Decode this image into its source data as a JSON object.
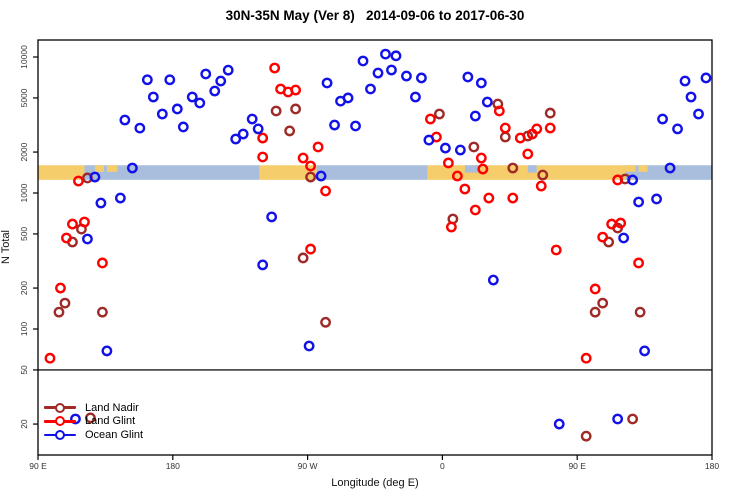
{
  "title": "30N-35N May (Ver 8)   2014-09-06 to 2017-06-30",
  "axes": {
    "x_label": "Longitude (deg E)",
    "y_label": "N Total"
  },
  "legend": {
    "items": [
      {
        "label": "Land Nadir",
        "color": "#9E2B28"
      },
      {
        "label": "Land Glint",
        "color": "#FF0000"
      },
      {
        "label": "Ocean Glint",
        "color": "#1212E8"
      }
    ]
  },
  "chart_data": {
    "type": "scatter",
    "title": "30N-35N May (Ver 8)   2014-09-06 to 2017-06-30",
    "xlabel": "Longitude (deg E)",
    "ylabel": "N Total",
    "x_axis": {
      "range": [
        90,
        540
      ],
      "ticks": [
        {
          "lon": 90,
          "label": "90 E"
        },
        {
          "lon": 180,
          "label": "180"
        },
        {
          "lon": 270,
          "label": "90 W"
        },
        {
          "lon": 360,
          "label": "0"
        },
        {
          "lon": 450,
          "label": "90 E"
        },
        {
          "lon": 540,
          "label": "180"
        }
      ]
    },
    "y_axis": {
      "scale": "log",
      "range": [
        12,
        13300
      ],
      "ticks": [
        10000,
        5000,
        2000,
        1000,
        500,
        200,
        100,
        50,
        20
      ]
    },
    "hline": 50,
    "map_band": {
      "value_range": [
        1250,
        1600
      ],
      "land_color": "#F6CD6B",
      "ocean_color": "#A9BEDD",
      "segments": [
        {
          "type": "land",
          "lon": [
            90,
            121
          ]
        },
        {
          "type": "ocean",
          "lon": [
            121,
            238
          ]
        },
        {
          "type": "land",
          "lon": [
            238,
            276
          ]
        },
        {
          "type": "ocean",
          "lon": [
            276,
            350
          ]
        },
        {
          "type": "land",
          "lon": [
            350,
            482
          ]
        },
        {
          "type": "ocean",
          "lon": [
            482,
            540
          ]
        }
      ],
      "islands": [
        {
          "lon": [
            128,
            134
          ]
        },
        {
          "lon": [
            136,
            143
          ]
        },
        {
          "lon": [
            482,
            489
          ]
        },
        {
          "lon": [
            491,
            497
          ]
        }
      ],
      "notches": [
        {
          "lon": [
            375,
            385
          ]
        },
        {
          "lon": [
            417,
            423
          ]
        }
      ]
    },
    "series": [
      {
        "name": "Land Nadir",
        "color": "#9E2B28",
        "points": [
          [
            123,
            1290
          ],
          [
            249,
            4010
          ],
          [
            262,
            4150
          ],
          [
            258,
            2860
          ],
          [
            358,
            3810
          ],
          [
            381,
            2180
          ],
          [
            397,
            4510
          ],
          [
            402,
            2580
          ],
          [
            417,
            2624
          ],
          [
            432,
            3870
          ],
          [
            407,
            1527
          ],
          [
            427,
            1355
          ],
          [
            482,
            1268
          ],
          [
            272,
            1310
          ],
          [
            119,
            543
          ],
          [
            113,
            436
          ],
          [
            108,
            155
          ],
          [
            104,
            133
          ],
          [
            133,
            133
          ],
          [
            267,
            333
          ],
          [
            282,
            112
          ],
          [
            367,
            644
          ],
          [
            477,
            553
          ],
          [
            471,
            436
          ],
          [
            467,
            155
          ],
          [
            462,
            133
          ],
          [
            492,
            133
          ],
          [
            456,
            16.3
          ],
          [
            487,
            21.8
          ],
          [
            125,
            22.2
          ]
        ]
      },
      {
        "name": "Land Glint",
        "color": "#FF0000",
        "points": [
          [
            117,
            1225
          ],
          [
            240,
            2535
          ],
          [
            240,
            1840
          ],
          [
            248,
            8300
          ],
          [
            252,
            5820
          ],
          [
            257,
            5530
          ],
          [
            262,
            5715
          ],
          [
            267,
            1807
          ],
          [
            272,
            1580
          ],
          [
            277,
            2180
          ],
          [
            356,
            2580
          ],
          [
            352,
            3500
          ],
          [
            364,
            1663
          ],
          [
            370,
            1333
          ],
          [
            386,
            1807
          ],
          [
            387,
            1500
          ],
          [
            398,
            4010
          ],
          [
            402,
            3005
          ],
          [
            412,
            2535
          ],
          [
            420,
            2715
          ],
          [
            423,
            2960
          ],
          [
            432,
            3005
          ],
          [
            417,
            1936
          ],
          [
            426,
            1125
          ],
          [
            477,
            1247
          ],
          [
            113,
            591
          ],
          [
            121,
            612
          ],
          [
            109,
            467
          ],
          [
            133,
            306
          ],
          [
            105,
            200
          ],
          [
            282,
            1035
          ],
          [
            272,
            387
          ],
          [
            375,
            1070
          ],
          [
            391,
            918
          ],
          [
            382,
            750
          ],
          [
            366,
            562
          ],
          [
            407,
            918
          ],
          [
            473,
            591
          ],
          [
            479,
            601
          ],
          [
            467,
            474
          ],
          [
            436,
            381
          ],
          [
            491,
            306
          ],
          [
            462,
            197
          ],
          [
            98,
            61
          ],
          [
            456,
            61
          ]
        ]
      },
      {
        "name": "Ocean Glint",
        "color": "#1212E8",
        "points": [
          [
            163,
            6800
          ],
          [
            178,
            6800
          ],
          [
            202,
            7500
          ],
          [
            217,
            8000
          ],
          [
            212,
            6660
          ],
          [
            208,
            5620
          ],
          [
            167,
            5080
          ],
          [
            193,
            5080
          ],
          [
            198,
            4590
          ],
          [
            173,
            3810
          ],
          [
            183,
            4150
          ],
          [
            148,
            3440
          ],
          [
            158,
            3000
          ],
          [
            187,
            3060
          ],
          [
            233,
            3500
          ],
          [
            237,
            2960
          ],
          [
            227,
            2715
          ],
          [
            222,
            2495
          ],
          [
            153,
            1527
          ],
          [
            128,
            1310
          ],
          [
            307,
            9350
          ],
          [
            322,
            10500
          ],
          [
            329,
            10200
          ],
          [
            317,
            7620
          ],
          [
            326,
            8020
          ],
          [
            336,
            7245
          ],
          [
            346,
            7015
          ],
          [
            312,
            5820
          ],
          [
            292,
            4740
          ],
          [
            297,
            5000
          ],
          [
            283,
            6440
          ],
          [
            288,
            3160
          ],
          [
            302,
            3110
          ],
          [
            342,
            5080
          ],
          [
            351,
            2450
          ],
          [
            362,
            2140
          ],
          [
            372,
            2070
          ],
          [
            377,
            7130
          ],
          [
            386,
            6440
          ],
          [
            390,
            4665
          ],
          [
            382,
            3680
          ],
          [
            279,
            1333
          ],
          [
            507,
            3500
          ],
          [
            517,
            2960
          ],
          [
            522,
            6660
          ],
          [
            536,
            7015
          ],
          [
            526,
            5080
          ],
          [
            531,
            3810
          ],
          [
            512,
            1527
          ],
          [
            487,
            1247
          ],
          [
            132,
            844
          ],
          [
            145,
            918
          ],
          [
            123,
            459
          ],
          [
            240,
            296
          ],
          [
            246,
            667
          ],
          [
            481,
            467
          ],
          [
            491,
            859
          ],
          [
            503,
            904
          ],
          [
            394,
            229
          ],
          [
            136,
            69
          ],
          [
            271,
            75
          ],
          [
            495,
            69
          ],
          [
            477,
            21.8
          ],
          [
            438,
            20
          ],
          [
            115,
            21.8
          ]
        ]
      }
    ]
  }
}
